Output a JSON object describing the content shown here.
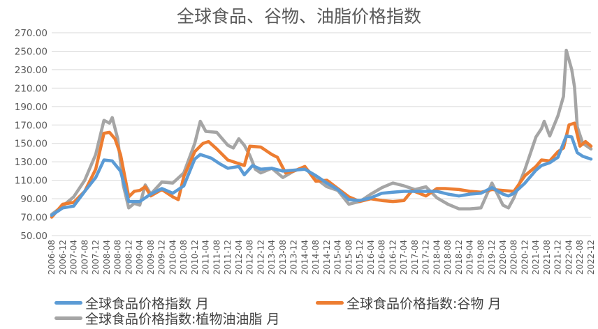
{
  "chart_data": {
    "type": "line",
    "title": "全球食品、谷物、油脂价格指数",
    "xlabel": "",
    "ylabel": "",
    "ylim": [
      50,
      270
    ],
    "yticks": [
      "50.00",
      "70.00",
      "90.00",
      "110.00",
      "130.00",
      "150.00",
      "170.00",
      "190.00",
      "210.00",
      "230.00",
      "250.00",
      "270.00"
    ],
    "x_start": "2006-08",
    "x_end": "2022-12",
    "x_tick_labels": [
      "2006-08",
      "2006-12",
      "2007-04",
      "2007-08",
      "2007-12",
      "2008-04",
      "2008-08",
      "2008-12",
      "2009-04",
      "2009-08",
      "2009-12",
      "2010-04",
      "2010-08",
      "2010-12",
      "2011-04",
      "2011-08",
      "2011-12",
      "2012-04",
      "2012-08",
      "2012-12",
      "2013-04",
      "2013-08",
      "2013-12",
      "2014-04",
      "2014-08",
      "2014-12",
      "2015-04",
      "2015-08",
      "2015-12",
      "2016-04",
      "2016-08",
      "2016-12",
      "2017-04",
      "2017-08",
      "2017-12",
      "2018-04",
      "2018-08",
      "2018-12",
      "2019-04",
      "2019-08",
      "2019-12",
      "2020-04",
      "2020-08",
      "2020-12",
      "2021-04",
      "2021-08",
      "2021-12",
      "2022-04",
      "2022-08",
      "2022-12"
    ],
    "legend_position": "bottom",
    "series": [
      {
        "name": "全球食品价格指数 月",
        "color": "#5B9BD5",
        "points": [
          [
            "2006-08",
            72
          ],
          [
            "2006-12",
            80
          ],
          [
            "2007-04",
            82
          ],
          [
            "2007-08",
            98
          ],
          [
            "2007-12",
            113
          ],
          [
            "2008-03",
            132
          ],
          [
            "2008-06",
            131
          ],
          [
            "2008-09",
            120
          ],
          [
            "2008-12",
            87
          ],
          [
            "2009-04",
            87
          ],
          [
            "2009-08",
            95
          ],
          [
            "2009-12",
            101
          ],
          [
            "2010-04",
            96
          ],
          [
            "2010-08",
            104
          ],
          [
            "2010-12",
            133
          ],
          [
            "2011-02",
            138
          ],
          [
            "2011-06",
            134
          ],
          [
            "2011-09",
            128
          ],
          [
            "2011-12",
            123
          ],
          [
            "2012-04",
            125
          ],
          [
            "2012-06",
            116
          ],
          [
            "2012-09",
            126
          ],
          [
            "2012-12",
            122
          ],
          [
            "2013-04",
            123
          ],
          [
            "2013-08",
            120
          ],
          [
            "2013-12",
            121
          ],
          [
            "2014-04",
            122
          ],
          [
            "2014-08",
            115
          ],
          [
            "2014-12",
            107
          ],
          [
            "2015-04",
            100
          ],
          [
            "2015-08",
            89
          ],
          [
            "2015-12",
            88
          ],
          [
            "2016-04",
            91
          ],
          [
            "2016-08",
            96
          ],
          [
            "2016-12",
            97
          ],
          [
            "2017-04",
            98
          ],
          [
            "2017-08",
            98
          ],
          [
            "2017-12",
            98
          ],
          [
            "2018-04",
            98
          ],
          [
            "2018-08",
            95
          ],
          [
            "2018-12",
            93
          ],
          [
            "2019-04",
            95
          ],
          [
            "2019-08",
            96
          ],
          [
            "2019-12",
            102
          ],
          [
            "2020-04",
            95
          ],
          [
            "2020-06",
            93
          ],
          [
            "2020-08",
            96
          ],
          [
            "2020-12",
            107
          ],
          [
            "2021-04",
            121
          ],
          [
            "2021-06",
            126
          ],
          [
            "2021-09",
            129
          ],
          [
            "2021-12",
            135
          ],
          [
            "2022-03",
            158
          ],
          [
            "2022-05",
            157
          ],
          [
            "2022-07",
            140
          ],
          [
            "2022-09",
            136
          ],
          [
            "2022-12",
            133
          ]
        ]
      },
      {
        "name": "全球食品价格指数:谷物 月",
        "color": "#ED7D31",
        "points": [
          [
            "2006-08",
            70
          ],
          [
            "2006-12",
            84
          ],
          [
            "2007-04",
            86
          ],
          [
            "2007-08",
            98
          ],
          [
            "2007-12",
            122
          ],
          [
            "2008-03",
            161
          ],
          [
            "2008-05",
            162
          ],
          [
            "2008-07",
            155
          ],
          [
            "2008-09",
            138
          ],
          [
            "2008-12",
            92
          ],
          [
            "2009-02",
            98
          ],
          [
            "2009-04",
            99
          ],
          [
            "2009-06",
            103
          ],
          [
            "2009-08",
            93
          ],
          [
            "2009-12",
            100
          ],
          [
            "2010-04",
            92
          ],
          [
            "2010-06",
            89
          ],
          [
            "2010-08",
            114
          ],
          [
            "2010-12",
            141
          ],
          [
            "2011-03",
            150
          ],
          [
            "2011-05",
            152
          ],
          [
            "2011-08",
            144
          ],
          [
            "2011-12",
            132
          ],
          [
            "2012-04",
            128
          ],
          [
            "2012-06",
            126
          ],
          [
            "2012-08",
            147
          ],
          [
            "2012-12",
            146
          ],
          [
            "2013-04",
            138
          ],
          [
            "2013-06",
            135
          ],
          [
            "2013-09",
            118
          ],
          [
            "2013-12",
            120
          ],
          [
            "2014-04",
            125
          ],
          [
            "2014-08",
            109
          ],
          [
            "2014-12",
            110
          ],
          [
            "2015-04",
            101
          ],
          [
            "2015-08",
            92
          ],
          [
            "2015-12",
            87
          ],
          [
            "2016-04",
            90
          ],
          [
            "2016-08",
            88
          ],
          [
            "2016-12",
            87
          ],
          [
            "2017-04",
            88
          ],
          [
            "2017-07",
            99
          ],
          [
            "2017-12",
            93
          ],
          [
            "2018-04",
            101
          ],
          [
            "2018-07",
            101
          ],
          [
            "2018-12",
            100
          ],
          [
            "2019-04",
            98
          ],
          [
            "2019-08",
            97
          ],
          [
            "2019-12",
            100
          ],
          [
            "2020-04",
            99
          ],
          [
            "2020-08",
            98
          ],
          [
            "2020-12",
            115
          ],
          [
            "2021-04",
            125
          ],
          [
            "2021-06",
            132
          ],
          [
            "2021-09",
            131
          ],
          [
            "2021-12",
            141
          ],
          [
            "2022-02",
            145
          ],
          [
            "2022-04",
            170
          ],
          [
            "2022-06",
            172
          ],
          [
            "2022-08",
            147
          ],
          [
            "2022-10",
            152
          ],
          [
            "2022-12",
            147
          ]
        ]
      },
      {
        "name": "全球食品价格指数:植物油油脂 月",
        "color": "#A5A5A5",
        "points": [
          [
            "2006-08",
            73
          ],
          [
            "2006-12",
            82
          ],
          [
            "2007-04",
            92
          ],
          [
            "2007-08",
            110
          ],
          [
            "2007-12",
            138
          ],
          [
            "2008-03",
            175
          ],
          [
            "2008-05",
            172
          ],
          [
            "2008-06",
            178
          ],
          [
            "2008-08",
            155
          ],
          [
            "2008-10",
            105
          ],
          [
            "2008-12",
            80
          ],
          [
            "2009-02",
            85
          ],
          [
            "2009-04",
            83
          ],
          [
            "2009-06",
            105
          ],
          [
            "2009-08",
            95
          ],
          [
            "2009-12",
            108
          ],
          [
            "2010-04",
            107
          ],
          [
            "2010-08",
            118
          ],
          [
            "2010-12",
            150
          ],
          [
            "2011-02",
            174
          ],
          [
            "2011-04",
            163
          ],
          [
            "2011-08",
            162
          ],
          [
            "2011-12",
            148
          ],
          [
            "2012-02",
            145
          ],
          [
            "2012-04",
            155
          ],
          [
            "2012-06",
            148
          ],
          [
            "2012-08",
            137
          ],
          [
            "2012-10",
            122
          ],
          [
            "2012-12",
            118
          ],
          [
            "2013-04",
            123
          ],
          [
            "2013-08",
            113
          ],
          [
            "2013-12",
            120
          ],
          [
            "2014-04",
            124
          ],
          [
            "2014-08",
            112
          ],
          [
            "2014-12",
            103
          ],
          [
            "2015-04",
            99
          ],
          [
            "2015-08",
            84
          ],
          [
            "2015-12",
            87
          ],
          [
            "2016-04",
            95
          ],
          [
            "2016-08",
            102
          ],
          [
            "2016-12",
            107
          ],
          [
            "2017-04",
            104
          ],
          [
            "2017-08",
            100
          ],
          [
            "2017-12",
            103
          ],
          [
            "2018-04",
            91
          ],
          [
            "2018-08",
            84
          ],
          [
            "2018-12",
            79
          ],
          [
            "2019-04",
            79
          ],
          [
            "2019-08",
            80
          ],
          [
            "2019-12",
            107
          ],
          [
            "2020-04",
            83
          ],
          [
            "2020-06",
            80
          ],
          [
            "2020-08",
            91
          ],
          [
            "2020-12",
            122
          ],
          [
            "2021-04",
            157
          ],
          [
            "2021-06",
            166
          ],
          [
            "2021-07",
            174
          ],
          [
            "2021-09",
            158
          ],
          [
            "2021-12",
            180
          ],
          [
            "2022-02",
            201
          ],
          [
            "2022-03",
            251
          ],
          [
            "2022-05",
            230
          ],
          [
            "2022-06",
            211
          ],
          [
            "2022-07",
            168
          ],
          [
            "2022-09",
            150
          ],
          [
            "2022-12",
            144
          ]
        ]
      }
    ]
  }
}
